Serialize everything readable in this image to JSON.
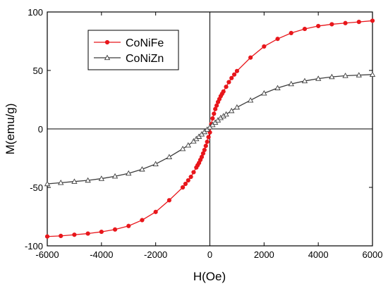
{
  "chart_data": {
    "type": "line",
    "xlabel": "H(Oe)",
    "ylabel": "M(emu/g)",
    "xlim": [
      -6000,
      6000
    ],
    "ylim": [
      -100,
      100
    ],
    "xticks": [
      -6000,
      -4000,
      -2000,
      0,
      2000,
      4000,
      6000
    ],
    "yticks": [
      -100,
      -50,
      0,
      50,
      100
    ],
    "zero_lines": true,
    "legend": {
      "placement": "top-left"
    },
    "series": [
      {
        "name": "CoNiFe",
        "color": "#e8161b",
        "marker": "filled-circle",
        "x": [
          -6000,
          -5500,
          -5000,
          -4500,
          -4000,
          -3500,
          -3000,
          -2500,
          -2000,
          -1500,
          -1000,
          -900,
          -800,
          -700,
          -600,
          -500,
          -450,
          -400,
          -350,
          -300,
          -250,
          -200,
          -150,
          -100,
          -50,
          0,
          50,
          100,
          150,
          200,
          250,
          300,
          350,
          400,
          450,
          500,
          600,
          700,
          800,
          900,
          1000,
          1500,
          2000,
          2500,
          3000,
          3500,
          4000,
          4500,
          5000,
          5500,
          6000
        ],
        "y": [
          -92,
          -91.5,
          -90.5,
          -89.5,
          -88,
          -86,
          -83,
          -78,
          -71,
          -61,
          -50,
          -47,
          -44,
          -41,
          -37,
          -33,
          -31,
          -29,
          -26.5,
          -24,
          -21,
          -18,
          -14.5,
          -11,
          -7,
          -3,
          4,
          9,
          13,
          17,
          20,
          23,
          25.5,
          28,
          30,
          32,
          36,
          40,
          43.5,
          46.5,
          49.5,
          61,
          70.5,
          77,
          82,
          85.5,
          88,
          89.5,
          90.5,
          91.5,
          92.5
        ]
      },
      {
        "name": "CoNiZn",
        "color": "#3c3c3c",
        "marker": "open-triangle",
        "x": [
          -6000,
          -5500,
          -5000,
          -4500,
          -4000,
          -3500,
          -3000,
          -2500,
          -2000,
          -1500,
          -1000,
          -800,
          -600,
          -500,
          -400,
          -300,
          -200,
          -100,
          0,
          100,
          200,
          300,
          400,
          500,
          600,
          800,
          1000,
          1500,
          2000,
          2500,
          3000,
          3500,
          4000,
          4500,
          5000,
          5500,
          6000
        ],
        "y": [
          -47,
          -46,
          -45,
          -44,
          -42.5,
          -40.5,
          -38,
          -34.5,
          -30,
          -24,
          -17,
          -14,
          -10.5,
          -8.5,
          -6.5,
          -4.5,
          -2.5,
          -0.5,
          1.5,
          3.5,
          5.5,
          7.5,
          9.5,
          11,
          12.5,
          15.5,
          18.5,
          24.5,
          30.5,
          35,
          38.5,
          41,
          43,
          44.5,
          45.5,
          46,
          46.5
        ]
      }
    ]
  }
}
